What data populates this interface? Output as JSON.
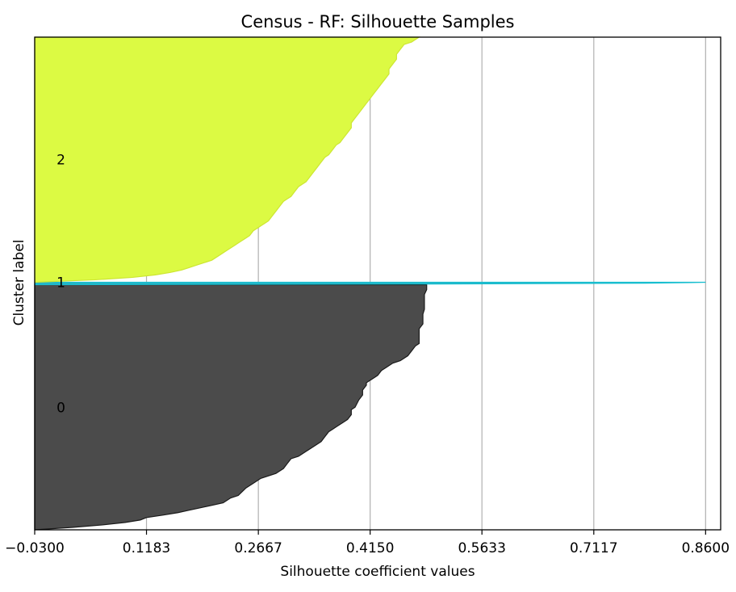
{
  "chart_data": {
    "type": "area",
    "title": "Census - RF: Silhouette Samples",
    "xlabel": "Silhouette coefficient values",
    "ylabel": "Cluster label",
    "xlim": [
      -0.03,
      0.88
    ],
    "x_ticks": [
      "−0.0300",
      "0.1183",
      "0.2667",
      "0.4150",
      "0.5633",
      "0.7117",
      "0.8600"
    ],
    "x_tick_values": [
      -0.03,
      0.1183,
      0.2667,
      0.415,
      0.5633,
      0.7117,
      0.86
    ],
    "grid": "vertical",
    "clusters": [
      {
        "label": "0",
        "color": "#4b4b4b",
        "edge_color": "#1a1a1a",
        "y_range": [
          0,
          100
        ],
        "profile": [
          [
            0,
            -0.03
          ],
          [
            1,
            0.02
          ],
          [
            2,
            0.06
          ],
          [
            3,
            0.09
          ],
          [
            4,
            0.11
          ],
          [
            5,
            0.1183
          ],
          [
            6,
            0.14
          ],
          [
            7,
            0.16
          ],
          [
            8,
            0.175
          ],
          [
            9,
            0.19
          ],
          [
            10,
            0.205
          ],
          [
            11,
            0.22
          ],
          [
            13,
            0.23
          ],
          [
            14,
            0.24
          ],
          [
            17,
            0.25
          ],
          [
            19,
            0.26
          ],
          [
            21,
            0.27
          ],
          [
            23,
            0.29
          ],
          [
            25,
            0.3
          ],
          [
            27,
            0.305
          ],
          [
            29,
            0.31
          ],
          [
            30,
            0.32
          ],
          [
            32,
            0.33
          ],
          [
            34,
            0.34
          ],
          [
            36,
            0.35
          ],
          [
            38,
            0.355
          ],
          [
            40,
            0.36
          ],
          [
            41,
            0.365
          ],
          [
            42,
            0.37
          ],
          [
            43,
            0.375
          ],
          [
            44,
            0.38
          ],
          [
            45,
            0.385
          ],
          [
            47,
            0.39
          ],
          [
            49,
            0.39
          ],
          [
            50,
            0.395
          ],
          [
            53,
            0.4
          ],
          [
            55,
            0.405
          ],
          [
            57,
            0.405
          ],
          [
            59,
            0.41
          ],
          [
            60,
            0.41
          ],
          [
            62,
            0.42
          ],
          [
            63,
            0.425
          ],
          [
            65,
            0.43
          ],
          [
            66,
            0.435
          ],
          [
            68,
            0.445
          ],
          [
            69,
            0.455
          ],
          [
            71,
            0.465
          ],
          [
            73,
            0.47
          ],
          [
            75,
            0.475
          ],
          [
            76,
            0.48
          ],
          [
            78,
            0.48
          ],
          [
            80,
            0.48
          ],
          [
            82,
            0.48
          ],
          [
            84,
            0.485
          ],
          [
            86,
            0.485
          ],
          [
            88,
            0.485
          ],
          [
            90,
            0.487
          ],
          [
            92,
            0.487
          ],
          [
            94,
            0.487
          ],
          [
            96,
            0.487
          ],
          [
            98,
            0.49
          ],
          [
            100,
            0.49
          ]
        ]
      },
      {
        "label": "1",
        "color": "#26b5c7",
        "edge_color": "#17becf",
        "y_range": [
          100,
          101
        ],
        "profile": [
          [
            100,
            -0.03
          ],
          [
            100.3,
            0.5
          ],
          [
            100.6,
            0.78
          ],
          [
            100.85,
            0.84
          ],
          [
            101,
            0.86
          ]
        ]
      },
      {
        "label": "2",
        "color": "#dcfa43",
        "edge_color": "#cde632",
        "y_range": [
          101,
          201
        ],
        "profile": [
          [
            101,
            -0.03
          ],
          [
            102,
            0.05
          ],
          [
            103,
            0.1
          ],
          [
            104,
            0.13
          ],
          [
            105,
            0.15
          ],
          [
            106,
            0.165
          ],
          [
            107,
            0.175
          ],
          [
            108,
            0.185
          ],
          [
            109,
            0.195
          ],
          [
            110,
            0.205
          ],
          [
            112,
            0.215
          ],
          [
            114,
            0.225
          ],
          [
            116,
            0.235
          ],
          [
            117,
            0.24
          ],
          [
            118,
            0.245
          ],
          [
            119,
            0.25
          ],
          [
            120,
            0.255
          ],
          [
            122,
            0.26
          ],
          [
            123,
            0.265
          ],
          [
            124,
            0.27
          ],
          [
            125,
            0.275
          ],
          [
            126,
            0.28
          ],
          [
            128,
            0.285
          ],
          [
            130,
            0.29
          ],
          [
            132,
            0.295
          ],
          [
            134,
            0.3
          ],
          [
            135,
            0.305
          ],
          [
            136,
            0.31
          ],
          [
            138,
            0.315
          ],
          [
            140,
            0.32
          ],
          [
            142,
            0.33
          ],
          [
            144,
            0.335
          ],
          [
            146,
            0.34
          ],
          [
            148,
            0.345
          ],
          [
            150,
            0.35
          ],
          [
            152,
            0.355
          ],
          [
            153,
            0.36
          ],
          [
            155,
            0.365
          ],
          [
            157,
            0.37
          ],
          [
            158,
            0.375
          ],
          [
            160,
            0.38
          ],
          [
            162,
            0.385
          ],
          [
            164,
            0.39
          ],
          [
            166,
            0.39
          ],
          [
            168,
            0.395
          ],
          [
            170,
            0.4
          ],
          [
            172,
            0.405
          ],
          [
            174,
            0.41
          ],
          [
            176,
            0.415
          ],
          [
            178,
            0.42
          ],
          [
            180,
            0.425
          ],
          [
            182,
            0.43
          ],
          [
            184,
            0.435
          ],
          [
            186,
            0.44
          ],
          [
            188,
            0.44
          ],
          [
            190,
            0.445
          ],
          [
            192,
            0.45
          ],
          [
            194,
            0.45
          ],
          [
            196,
            0.455
          ],
          [
            198,
            0.46
          ],
          [
            199,
            0.47
          ],
          [
            200,
            0.475
          ],
          [
            201,
            0.48
          ]
        ]
      }
    ],
    "y_ticks": [
      {
        "label": "0",
        "value": 50
      },
      {
        "label": "1",
        "value": 101
      },
      {
        "label": "2",
        "value": 151
      }
    ],
    "ylim": [
      0,
      201
    ]
  }
}
